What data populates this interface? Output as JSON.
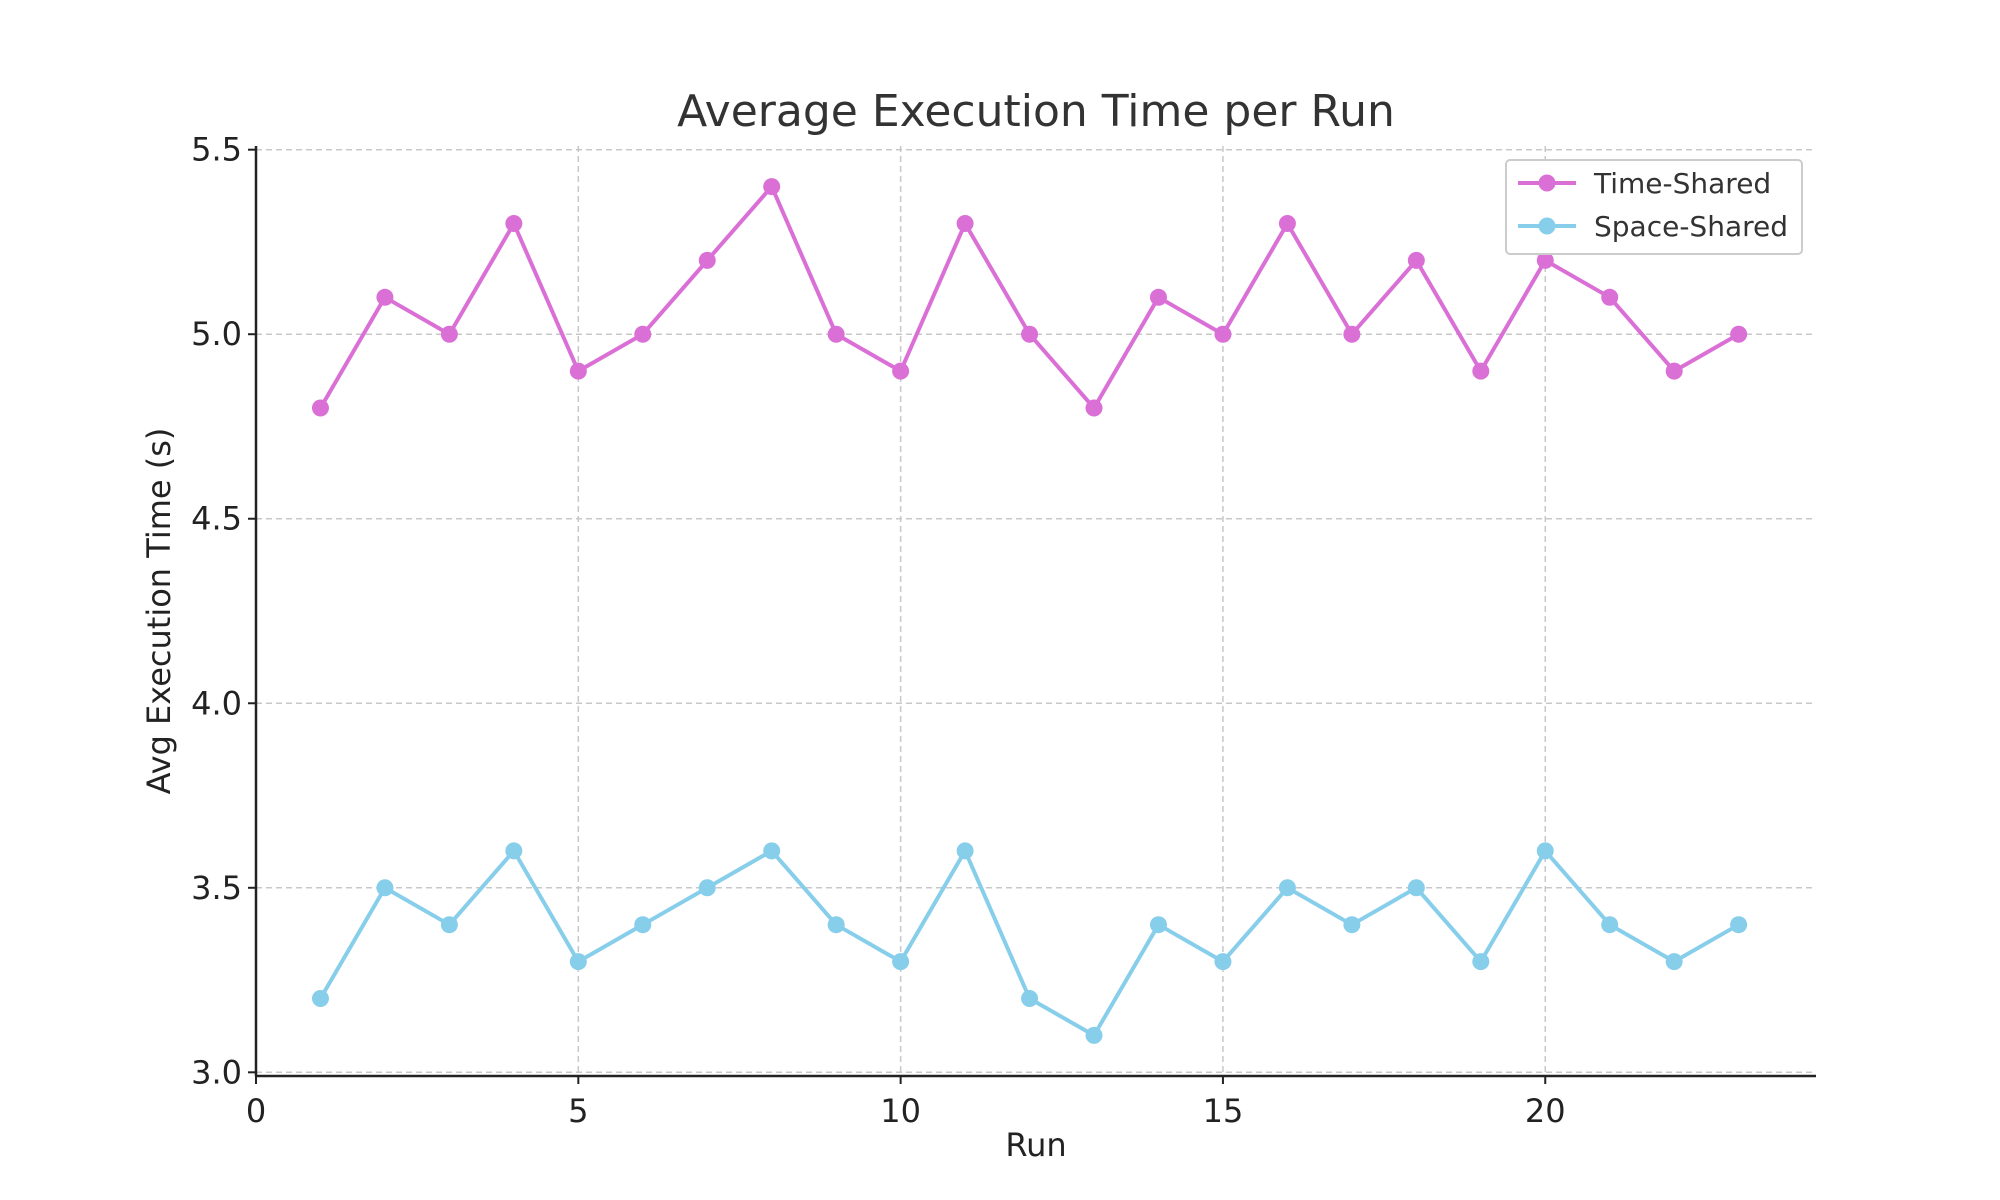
{
  "chart_data": {
    "type": "line",
    "title": "Average Execution Time per Run",
    "xlabel": "Run",
    "ylabel": "Avg Execution Time (s)",
    "xlim": [
      0,
      24.2
    ],
    "ylim": [
      2.99,
      5.51
    ],
    "xticks": [
      "0",
      "5",
      "10",
      "15",
      "20"
    ],
    "xtick_values": [
      0,
      5,
      10,
      15,
      20
    ],
    "yticks": [
      "3.0",
      "3.5",
      "4.0",
      "4.5",
      "5.0",
      "5.5"
    ],
    "ytick_values": [
      3.0,
      3.5,
      4.0,
      4.5,
      5.0,
      5.5
    ],
    "grid": true,
    "legend_position": "top-right",
    "x": [
      1,
      2,
      3,
      4,
      5,
      6,
      7,
      8,
      9,
      10,
      11,
      12,
      13,
      14,
      15,
      16,
      17,
      18,
      19,
      20,
      21,
      22,
      23
    ],
    "series": [
      {
        "name": "Time-Shared",
        "color": "#da70d6",
        "values": [
          4.8,
          5.1,
          5.0,
          5.3,
          4.9,
          5.0,
          5.2,
          5.4,
          5.0,
          4.9,
          5.3,
          5.0,
          4.8,
          5.1,
          5.0,
          5.3,
          5.0,
          5.2,
          4.9,
          5.2,
          5.1,
          4.9,
          5.0
        ]
      },
      {
        "name": "Space-Shared",
        "color": "#87ceeb",
        "values": [
          3.2,
          3.5,
          3.4,
          3.6,
          3.3,
          3.4,
          3.5,
          3.6,
          3.4,
          3.3,
          3.6,
          3.2,
          3.1,
          3.4,
          3.3,
          3.5,
          3.4,
          3.5,
          3.3,
          3.6,
          3.4,
          3.3,
          3.4
        ]
      }
    ]
  }
}
